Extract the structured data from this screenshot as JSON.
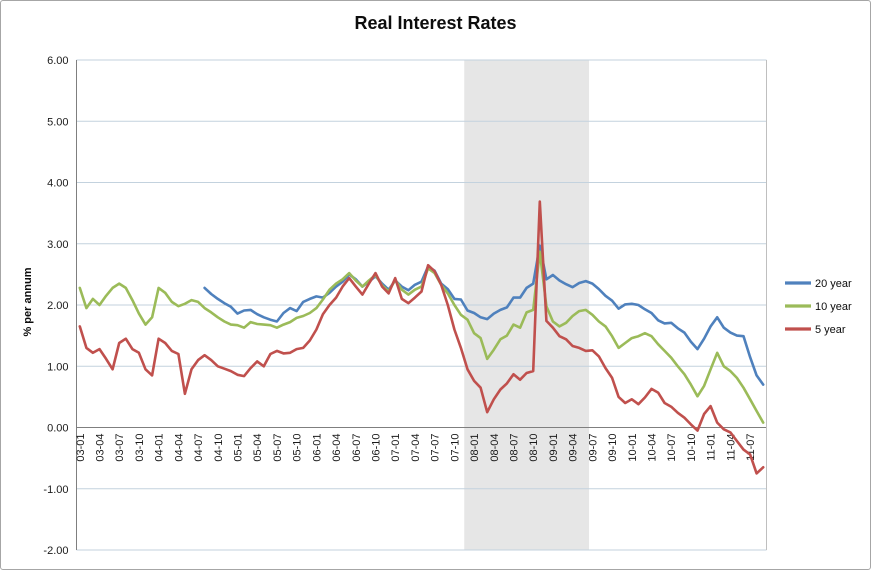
{
  "window": {
    "background": "#ffffff",
    "border_color": "#a6a6a6"
  },
  "chart_data": {
    "type": "line",
    "title": "Real Interest Rates",
    "xlabel": "",
    "ylabel": "% per annum",
    "ylim": [
      -2,
      6
    ],
    "ytick_step": 1,
    "y_tick_labels": [
      "6.00",
      "5.00",
      "4.00",
      "3.00",
      "2.00",
      "1.00",
      "0.00",
      "-1.00",
      "-2.00"
    ],
    "grid": true,
    "legend_position": "right",
    "x_tick_every": 3,
    "x_tick_labels": [
      "03-01",
      "03-04",
      "03-07",
      "03-10",
      "04-01",
      "04-04",
      "04-07",
      "04-10",
      "05-01",
      "05-04",
      "05-07",
      "05-10",
      "06-01",
      "06-04",
      "06-07",
      "06-10",
      "07-01",
      "07-04",
      "07-07",
      "07-10",
      "08-01",
      "08-04",
      "08-07",
      "08-10",
      "09-01",
      "09-04",
      "09-07",
      "09-10",
      "10-01",
      "10-04",
      "10-07",
      "10-10",
      "11-01",
      "11-04",
      "11-07"
    ],
    "categories": [
      "03-01",
      "03-02",
      "03-03",
      "03-04",
      "03-05",
      "03-06",
      "03-07",
      "03-08",
      "03-09",
      "03-10",
      "03-11",
      "03-12",
      "04-01",
      "04-02",
      "04-03",
      "04-04",
      "04-05",
      "04-06",
      "04-07",
      "04-08",
      "04-09",
      "04-10",
      "04-11",
      "04-12",
      "05-01",
      "05-02",
      "05-03",
      "05-04",
      "05-05",
      "05-06",
      "05-07",
      "05-08",
      "05-09",
      "05-10",
      "05-11",
      "05-12",
      "06-01",
      "06-02",
      "06-03",
      "06-04",
      "06-05",
      "06-06",
      "06-07",
      "06-08",
      "06-09",
      "06-10",
      "06-11",
      "06-12",
      "07-01",
      "07-02",
      "07-03",
      "07-04",
      "07-05",
      "07-06",
      "07-07",
      "07-08",
      "07-09",
      "07-10",
      "07-11",
      "07-12",
      "08-01",
      "08-02",
      "08-03",
      "08-04",
      "08-05",
      "08-06",
      "08-07",
      "08-08",
      "08-09",
      "08-10",
      "08-11",
      "08-12",
      "09-01",
      "09-02",
      "09-03",
      "09-04",
      "09-05",
      "09-06",
      "09-07",
      "09-08",
      "09-09",
      "09-10",
      "09-11",
      "09-12",
      "10-01",
      "10-02",
      "10-03",
      "10-04",
      "10-05",
      "10-06",
      "10-07",
      "10-08",
      "10-09",
      "10-10",
      "10-11",
      "10-12",
      "11-01",
      "11-02",
      "11-03",
      "11-04",
      "11-05",
      "11-06",
      "11-07",
      "11-08",
      "11-09"
    ],
    "recession_band": {
      "start_category": "07-12",
      "end_category": "09-06",
      "from_index": 59,
      "to_index": 78,
      "color": "#e6e6e6"
    },
    "series": [
      {
        "name": "20 year",
        "color": "#4F81BD",
        "values": [
          null,
          null,
          null,
          null,
          null,
          null,
          null,
          null,
          null,
          null,
          null,
          null,
          null,
          null,
          null,
          null,
          null,
          null,
          null,
          2.28,
          2.18,
          2.1,
          2.03,
          1.97,
          1.86,
          1.91,
          1.92,
          1.85,
          1.8,
          1.76,
          1.73,
          1.87,
          1.95,
          1.9,
          2.05,
          2.1,
          2.14,
          2.12,
          2.2,
          2.3,
          2.38,
          2.5,
          2.42,
          2.3,
          2.38,
          2.47,
          2.35,
          2.25,
          2.4,
          2.3,
          2.24,
          2.33,
          2.38,
          2.63,
          2.56,
          2.35,
          2.26,
          2.1,
          2.09,
          1.91,
          1.87,
          1.8,
          1.77,
          1.86,
          1.92,
          1.96,
          2.12,
          2.12,
          2.28,
          2.35,
          2.97,
          2.42,
          2.49,
          2.4,
          2.34,
          2.29,
          2.36,
          2.39,
          2.35,
          2.26,
          2.15,
          2.07,
          1.94,
          2.01,
          2.02,
          2.0,
          1.93,
          1.87,
          1.75,
          1.7,
          1.71,
          1.62,
          1.55,
          1.4,
          1.28,
          1.45,
          1.65,
          1.8,
          1.63,
          1.55,
          1.5,
          1.49,
          1.15,
          0.85,
          0.7
        ]
      },
      {
        "name": "10 year",
        "color": "#9BBB59",
        "values": [
          2.28,
          1.95,
          2.1,
          2.0,
          2.15,
          2.28,
          2.35,
          2.28,
          2.08,
          1.86,
          1.68,
          1.8,
          2.28,
          2.2,
          2.05,
          1.98,
          2.02,
          2.08,
          2.05,
          1.95,
          1.88,
          1.8,
          1.73,
          1.68,
          1.67,
          1.63,
          1.72,
          1.69,
          1.68,
          1.67,
          1.63,
          1.68,
          1.72,
          1.79,
          1.82,
          1.87,
          1.95,
          2.09,
          2.25,
          2.35,
          2.42,
          2.52,
          2.4,
          2.3,
          2.4,
          2.49,
          2.32,
          2.22,
          2.41,
          2.25,
          2.17,
          2.25,
          2.3,
          2.6,
          2.52,
          2.33,
          2.19,
          2.0,
          1.84,
          1.76,
          1.54,
          1.46,
          1.12,
          1.27,
          1.44,
          1.5,
          1.68,
          1.63,
          1.88,
          1.92,
          2.87,
          1.98,
          1.73,
          1.65,
          1.71,
          1.82,
          1.9,
          1.92,
          1.84,
          1.73,
          1.65,
          1.49,
          1.3,
          1.38,
          1.46,
          1.49,
          1.54,
          1.49,
          1.36,
          1.25,
          1.14,
          1.0,
          0.87,
          0.7,
          0.51,
          0.68,
          0.95,
          1.22,
          1.0,
          0.92,
          0.81,
          0.65,
          0.46,
          0.27,
          0.08
        ]
      },
      {
        "name": "5 year",
        "color": "#C0504D",
        "values": [
          1.65,
          1.3,
          1.22,
          1.28,
          1.12,
          0.95,
          1.38,
          1.45,
          1.28,
          1.22,
          0.95,
          0.85,
          1.45,
          1.38,
          1.25,
          1.2,
          0.55,
          0.95,
          1.1,
          1.18,
          1.1,
          1.0,
          0.96,
          0.92,
          0.86,
          0.84,
          0.97,
          1.08,
          1.0,
          1.2,
          1.25,
          1.21,
          1.22,
          1.28,
          1.3,
          1.42,
          1.6,
          1.85,
          2.0,
          2.12,
          2.3,
          2.44,
          2.3,
          2.17,
          2.35,
          2.52,
          2.3,
          2.19,
          2.44,
          2.1,
          2.03,
          2.12,
          2.22,
          2.65,
          2.55,
          2.33,
          2.0,
          1.6,
          1.3,
          0.95,
          0.76,
          0.65,
          0.25,
          0.46,
          0.62,
          0.72,
          0.87,
          0.78,
          0.89,
          0.92,
          3.69,
          1.74,
          1.63,
          1.49,
          1.44,
          1.33,
          1.3,
          1.25,
          1.26,
          1.16,
          0.97,
          0.81,
          0.5,
          0.4,
          0.46,
          0.38,
          0.49,
          0.63,
          0.57,
          0.4,
          0.34,
          0.24,
          0.16,
          0.05,
          -0.05,
          0.22,
          0.35,
          0.08,
          -0.03,
          -0.08,
          -0.22,
          -0.36,
          -0.44,
          -0.75,
          -0.65
        ]
      }
    ],
    "colors": {
      "series_20_year": "#4F81BD",
      "series_10_year": "#9BBB59",
      "series_5_year": "#C0504D",
      "gridline": "#c3d2de",
      "zero_axis": "#7f7f7f",
      "left_axis": "#7f7f7f",
      "plot_right_border": "#bfbfbf",
      "recession_band": "#e6e6e6",
      "tick_text": "#1a1a1a"
    }
  }
}
